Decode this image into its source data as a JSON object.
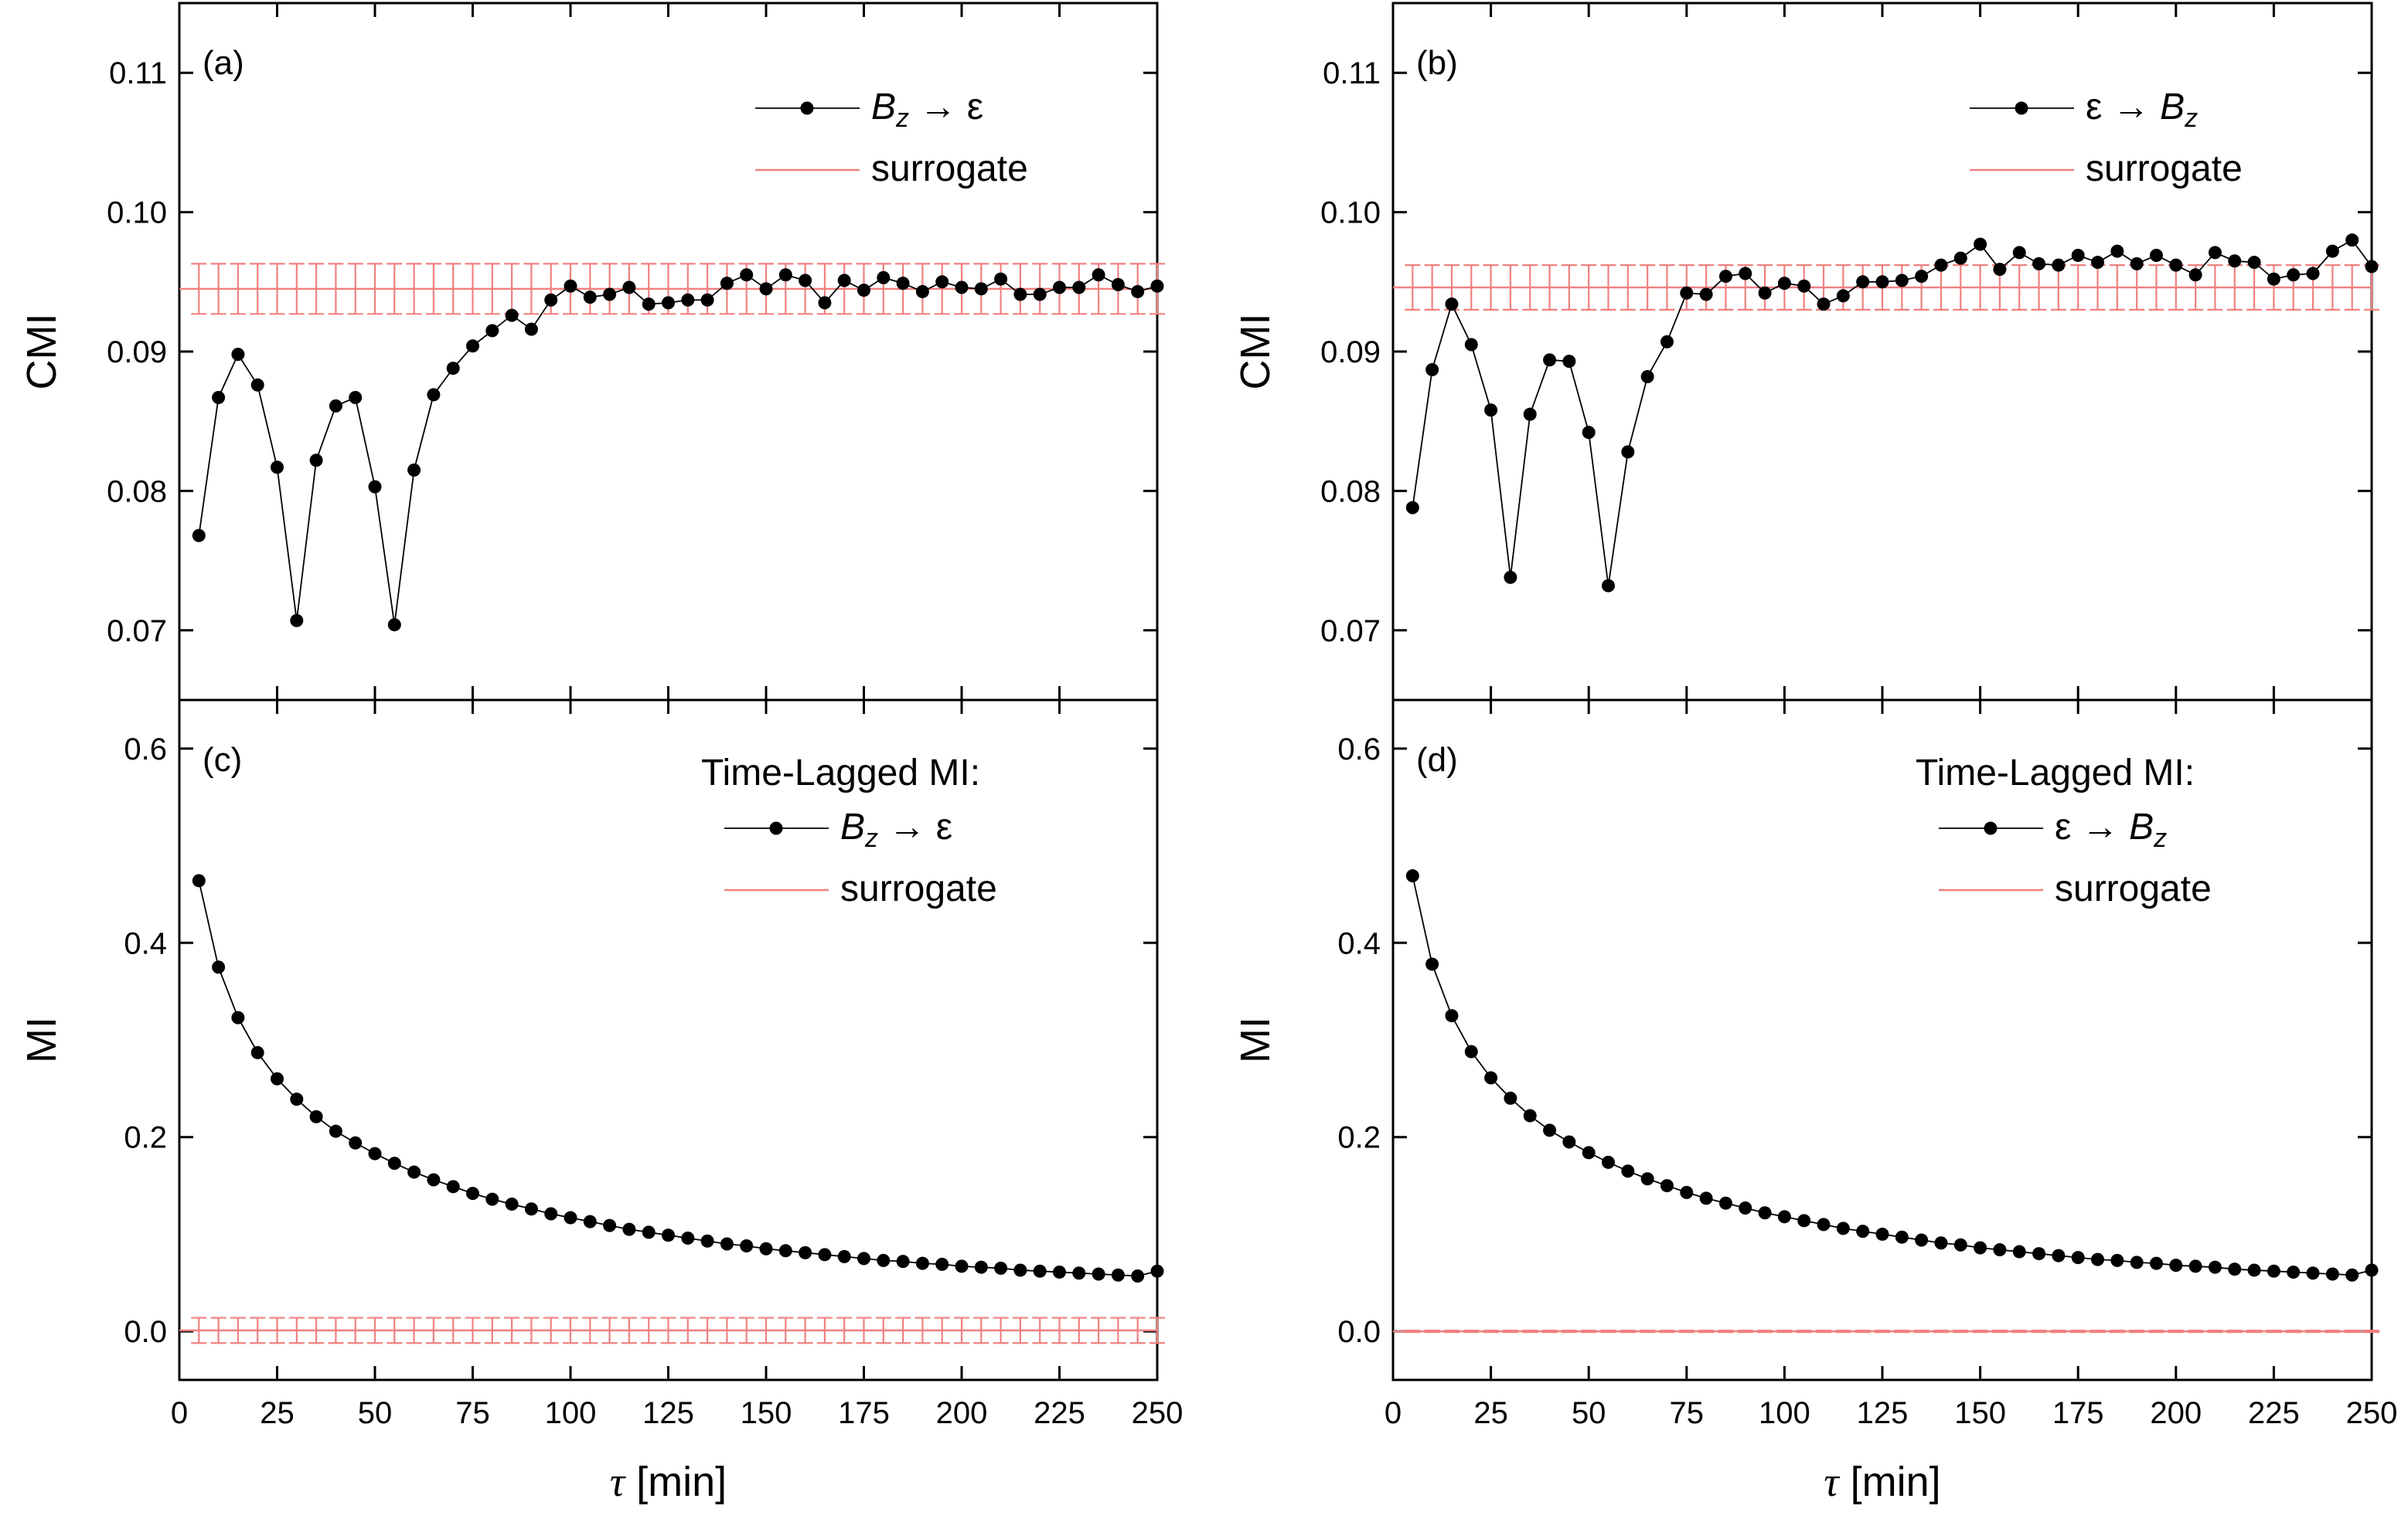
{
  "chart_data": [
    {
      "panel": "(a)",
      "type": "line",
      "xlabel": "",
      "ylabel": "CMI",
      "xlim": [
        0,
        250
      ],
      "ylim": [
        0.065,
        0.115
      ],
      "yticks": [
        "0.07",
        "0.08",
        "0.09",
        "0.10",
        "0.11"
      ],
      "xticks": [],
      "legend_heading": "",
      "legend_placement": "top-right",
      "x": [
        5,
        10,
        15,
        20,
        25,
        30,
        35,
        40,
        45,
        50,
        55,
        60,
        65,
        70,
        75,
        80,
        85,
        90,
        95,
        100,
        105,
        110,
        115,
        120,
        125,
        130,
        135,
        140,
        145,
        150,
        155,
        160,
        165,
        170,
        175,
        180,
        185,
        190,
        195,
        200,
        205,
        210,
        215,
        220,
        225,
        230,
        235,
        240,
        245,
        250
      ],
      "series": [
        {
          "name": "B_z → ε",
          "label_parts": {
            "base": "B",
            "sub": "z",
            "arrow": " → ",
            "target": "ε",
            "order": "bz-first"
          },
          "color": "#000000",
          "values": [
            0.0768,
            0.0867,
            0.0898,
            0.0876,
            0.0817,
            0.0707,
            0.0822,
            0.0861,
            0.0867,
            0.0803,
            0.0704,
            0.0815,
            0.0869,
            0.0888,
            0.0904,
            0.0915,
            0.0926,
            0.0916,
            0.0937,
            0.0947,
            0.0939,
            0.0941,
            0.0946,
            0.0934,
            0.0935,
            0.0937,
            0.0937,
            0.0949,
            0.0955,
            0.0945,
            0.0955,
            0.0951,
            0.0935,
            0.0951,
            0.0944,
            0.0953,
            0.0949,
            0.0943,
            0.095,
            0.0946,
            0.0945,
            0.0952,
            0.0941,
            0.0941,
            0.0946,
            0.0946,
            0.0955,
            0.0948,
            0.0943,
            0.0947
          ]
        },
        {
          "name": "surrogate",
          "color": "#f08080",
          "mean": 0.0945,
          "error": 0.0018
        }
      ]
    },
    {
      "panel": "(b)",
      "type": "line",
      "xlabel": "",
      "ylabel": "CMI",
      "xlim": [
        0,
        250
      ],
      "ylim": [
        0.065,
        0.115
      ],
      "yticks": [
        "0.07",
        "0.08",
        "0.09",
        "0.10",
        "0.11"
      ],
      "xticks": [],
      "legend_heading": "",
      "legend_placement": "top-right",
      "x": [
        5,
        10,
        15,
        20,
        25,
        30,
        35,
        40,
        45,
        50,
        55,
        60,
        65,
        70,
        75,
        80,
        85,
        90,
        95,
        100,
        105,
        110,
        115,
        120,
        125,
        130,
        135,
        140,
        145,
        150,
        155,
        160,
        165,
        170,
        175,
        180,
        185,
        190,
        195,
        200,
        205,
        210,
        215,
        220,
        225,
        230,
        235,
        240,
        245,
        250
      ],
      "series": [
        {
          "name": "ε → B_z",
          "label_parts": {
            "base": "B",
            "sub": "z",
            "arrow": " → ",
            "target": "ε",
            "order": "eps-first"
          },
          "color": "#000000",
          "values": [
            0.0788,
            0.0887,
            0.0934,
            0.0905,
            0.0858,
            0.0738,
            0.0855,
            0.0894,
            0.0893,
            0.0842,
            0.0732,
            0.0828,
            0.0882,
            0.0907,
            0.0942,
            0.0941,
            0.0954,
            0.0956,
            0.0942,
            0.0949,
            0.0947,
            0.0934,
            0.094,
            0.095,
            0.095,
            0.0951,
            0.0954,
            0.0962,
            0.0967,
            0.0977,
            0.0959,
            0.0971,
            0.0963,
            0.0962,
            0.0969,
            0.0964,
            0.0972,
            0.0963,
            0.0969,
            0.0962,
            0.0955,
            0.0971,
            0.0965,
            0.0964,
            0.0952,
            0.0955,
            0.0956,
            0.0972,
            0.098,
            0.0961
          ]
        },
        {
          "name": "surrogate",
          "color": "#f08080",
          "mean": 0.0946,
          "error": 0.0016
        }
      ]
    },
    {
      "panel": "(c)",
      "type": "line",
      "xlabel": "τ [min]",
      "ylabel": "MI",
      "xlim": [
        0,
        250
      ],
      "ylim": [
        -0.05,
        0.65
      ],
      "yticks": [
        "0.0",
        "0.2",
        "0.4",
        "0.6"
      ],
      "xticks": [
        "0",
        "25",
        "50",
        "75",
        "100",
        "125",
        "150",
        "175",
        "200",
        "225",
        "250"
      ],
      "legend_heading": "Time-Lagged MI:",
      "legend_placement": "top-right",
      "x": [
        5,
        10,
        15,
        20,
        25,
        30,
        35,
        40,
        45,
        50,
        55,
        60,
        65,
        70,
        75,
        80,
        85,
        90,
        95,
        100,
        105,
        110,
        115,
        120,
        125,
        130,
        135,
        140,
        145,
        150,
        155,
        160,
        165,
        170,
        175,
        180,
        185,
        190,
        195,
        200,
        205,
        210,
        215,
        220,
        225,
        230,
        235,
        240,
        245,
        250
      ],
      "series": [
        {
          "name": "B_z → ε",
          "label_parts": {
            "base": "B",
            "sub": "z",
            "arrow": " → ",
            "target": "ε",
            "order": "bz-first"
          },
          "color": "#000000",
          "values": [
            0.464,
            0.375,
            0.323,
            0.287,
            0.26,
            0.239,
            0.221,
            0.206,
            0.194,
            0.183,
            0.173,
            0.164,
            0.156,
            0.149,
            0.142,
            0.136,
            0.131,
            0.126,
            0.121,
            0.117,
            0.113,
            0.109,
            0.105,
            0.102,
            0.099,
            0.096,
            0.093,
            0.09,
            0.088,
            0.085,
            0.083,
            0.081,
            0.079,
            0.077,
            0.075,
            0.073,
            0.072,
            0.07,
            0.069,
            0.067,
            0.066,
            0.065,
            0.063,
            0.062,
            0.061,
            0.06,
            0.059,
            0.058,
            0.057,
            0.062
          ]
        },
        {
          "name": "surrogate",
          "color": "#f08080",
          "mean": 0.001,
          "error": 0.013
        }
      ]
    },
    {
      "panel": "(d)",
      "type": "line",
      "xlabel": "τ [min]",
      "ylabel": "MI",
      "xlim": [
        0,
        250
      ],
      "ylim": [
        -0.05,
        0.65
      ],
      "yticks": [
        "0.0",
        "0.2",
        "0.4",
        "0.6"
      ],
      "xticks": [
        "0",
        "25",
        "50",
        "75",
        "100",
        "125",
        "150",
        "175",
        "200",
        "225",
        "250"
      ],
      "legend_heading": "Time-Lagged MI:",
      "legend_placement": "top-right",
      "x": [
        5,
        10,
        15,
        20,
        25,
        30,
        35,
        40,
        45,
        50,
        55,
        60,
        65,
        70,
        75,
        80,
        85,
        90,
        95,
        100,
        105,
        110,
        115,
        120,
        125,
        130,
        135,
        140,
        145,
        150,
        155,
        160,
        165,
        170,
        175,
        180,
        185,
        190,
        195,
        200,
        205,
        210,
        215,
        220,
        225,
        230,
        235,
        240,
        245,
        250
      ],
      "series": [
        {
          "name": "ε  → B_z",
          "label_parts": {
            "base": "B",
            "sub": "z",
            "arrow": "  → ",
            "target": "ε",
            "order": "eps-first"
          },
          "color": "#000000",
          "values": [
            0.469,
            0.378,
            0.325,
            0.288,
            0.261,
            0.24,
            0.222,
            0.207,
            0.195,
            0.184,
            0.174,
            0.165,
            0.157,
            0.15,
            0.143,
            0.137,
            0.132,
            0.127,
            0.122,
            0.118,
            0.114,
            0.11,
            0.106,
            0.103,
            0.1,
            0.097,
            0.094,
            0.091,
            0.089,
            0.086,
            0.084,
            0.082,
            0.08,
            0.078,
            0.076,
            0.074,
            0.073,
            0.071,
            0.07,
            0.068,
            0.067,
            0.066,
            0.064,
            0.063,
            0.062,
            0.061,
            0.06,
            0.059,
            0.058,
            0.063
          ]
        },
        {
          "name": "surrogate",
          "color": "#f08080",
          "mean": 0.0,
          "error": 0.0008
        }
      ]
    }
  ]
}
